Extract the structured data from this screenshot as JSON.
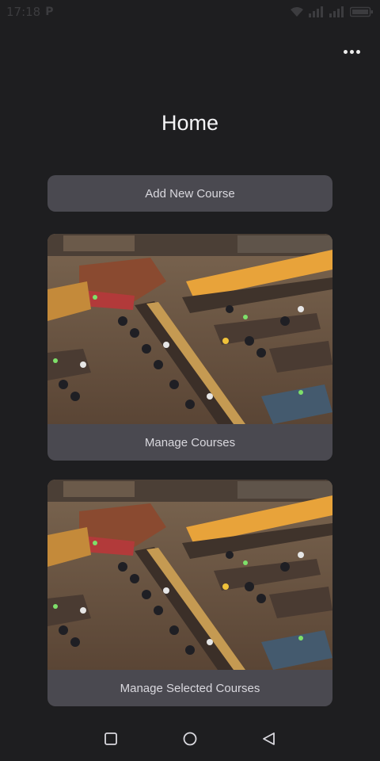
{
  "status_bar": {
    "time": "17:18",
    "notification_icon": "p-icon",
    "icons": [
      "wifi-icon",
      "signal-icon",
      "signal-icon",
      "battery-icon"
    ]
  },
  "header": {
    "menu_icon": "more-horizontal-icon",
    "title": "Home"
  },
  "actions": {
    "add_course_label": "Add New Course"
  },
  "cards": [
    {
      "label": "Manage Courses",
      "image": "library-reading-room-photo"
    },
    {
      "label": "Manage Selected Courses",
      "image": "library-reading-room-photo"
    }
  ],
  "nav_bar": {
    "recents_icon": "square-icon",
    "home_icon": "circle-icon",
    "back_icon": "triangle-back-icon"
  },
  "colors": {
    "background": "#1e1e20",
    "surface": "#4a4950",
    "text_primary": "#f4f4f6",
    "text_secondary": "#d9d8de"
  }
}
